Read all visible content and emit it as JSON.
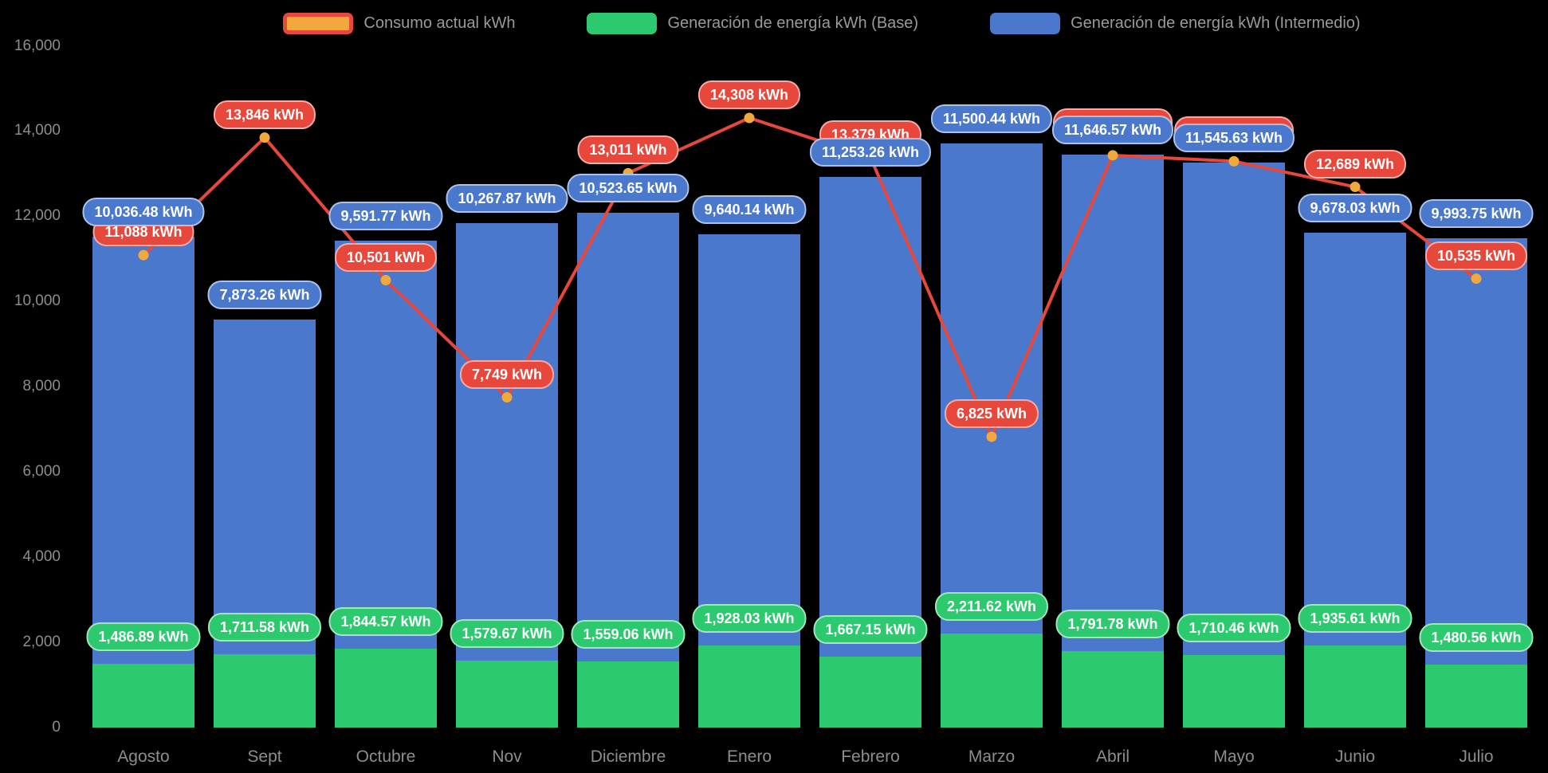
{
  "background": "#000000",
  "axis_label_color": "#8d8d8d",
  "legend": {
    "items": [
      {
        "label": "Consumo actual kWh",
        "swatch_fill": "#f2a93b",
        "swatch_border": "#e8473c"
      },
      {
        "label": "Generación de energía kWh (Base)",
        "swatch_fill": "#2dc96e",
        "swatch_border": "#2dc96e"
      },
      {
        "label": "Generación de energía kWh (Intermedio)",
        "swatch_fill": "#4a78cc",
        "swatch_border": "#4a78cc"
      }
    ]
  },
  "chart_data": {
    "type": "bar",
    "subtype": "stacked-bars-with-line-overlay",
    "title": "",
    "legend_position": "top",
    "grid": false,
    "categories": [
      "Agosto",
      "Sept",
      "Octubre",
      "Nov",
      "Diciembre",
      "Enero",
      "Febrero",
      "Marzo",
      "Abril",
      "Mayo",
      "Junio",
      "Julio"
    ],
    "y_axis": {
      "min": 0,
      "max": 16000,
      "tick_step": 2000,
      "tick_labels": [
        "0",
        "2,000",
        "4,000",
        "6,000",
        "8,000",
        "10,000",
        "12,000",
        "14,000",
        "16,000"
      ]
    },
    "series": [
      {
        "name": "Generación de energía kWh (Base)",
        "type": "bar",
        "color": "#2dc96e",
        "values": [
          1486.89,
          1711.58,
          1844.57,
          1579.67,
          1559.06,
          1928.03,
          1667.15,
          2211.62,
          1791.78,
          1710.46,
          1935.61,
          1480.56
        ],
        "data_labels": [
          "1,486.89 kWh",
          "1,711.58 kWh",
          "1,844.57 kWh",
          "1,579.67 kWh",
          "1,559.06 kWh",
          "1,928.03 kWh",
          "1,667.15 kWh",
          "2,211.62 kWh",
          "1,791.78 kWh",
          "1,710.46 kWh",
          "1,935.61 kWh",
          "1,480.56 kWh"
        ]
      },
      {
        "name": "Generación de energía kWh (Intermedio)",
        "type": "bar",
        "color": "#4a78cc",
        "values": [
          10036.48,
          7873.26,
          9591.77,
          10267.87,
          10523.65,
          9640.14,
          11253.26,
          11500.44,
          11646.57,
          11545.63,
          9678.03,
          9993.75
        ],
        "data_labels": [
          "10,036.48 kWh",
          "7,873.26 kWh",
          "9,591.77 kWh",
          "10,267.87 kWh",
          "10,523.65 kWh",
          "9,640.14 kWh",
          "11,253.26 kWh",
          "11,500.44 kWh",
          "11,646.57 kWh",
          "11,545.63 kWh",
          "9,678.03 kWh",
          "9,993.75 kWh"
        ]
      },
      {
        "name": "Consumo actual kWh",
        "type": "line",
        "color": "#e8473c",
        "marker_color": "#f2a93b",
        "values": [
          11088,
          13846,
          10501,
          7749,
          13011,
          14308,
          13379,
          6825,
          13430,
          13290,
          12689,
          10535
        ],
        "data_labels": [
          "11,088 kWh",
          "13,846 kWh",
          "10,501 kWh",
          "7,749 kWh",
          "13,011 kWh",
          "14,308 kWh",
          "13,379 kWh",
          "6,825 kWh",
          "",
          "",
          "12,689 kWh",
          "10,535 kWh"
        ]
      }
    ]
  }
}
